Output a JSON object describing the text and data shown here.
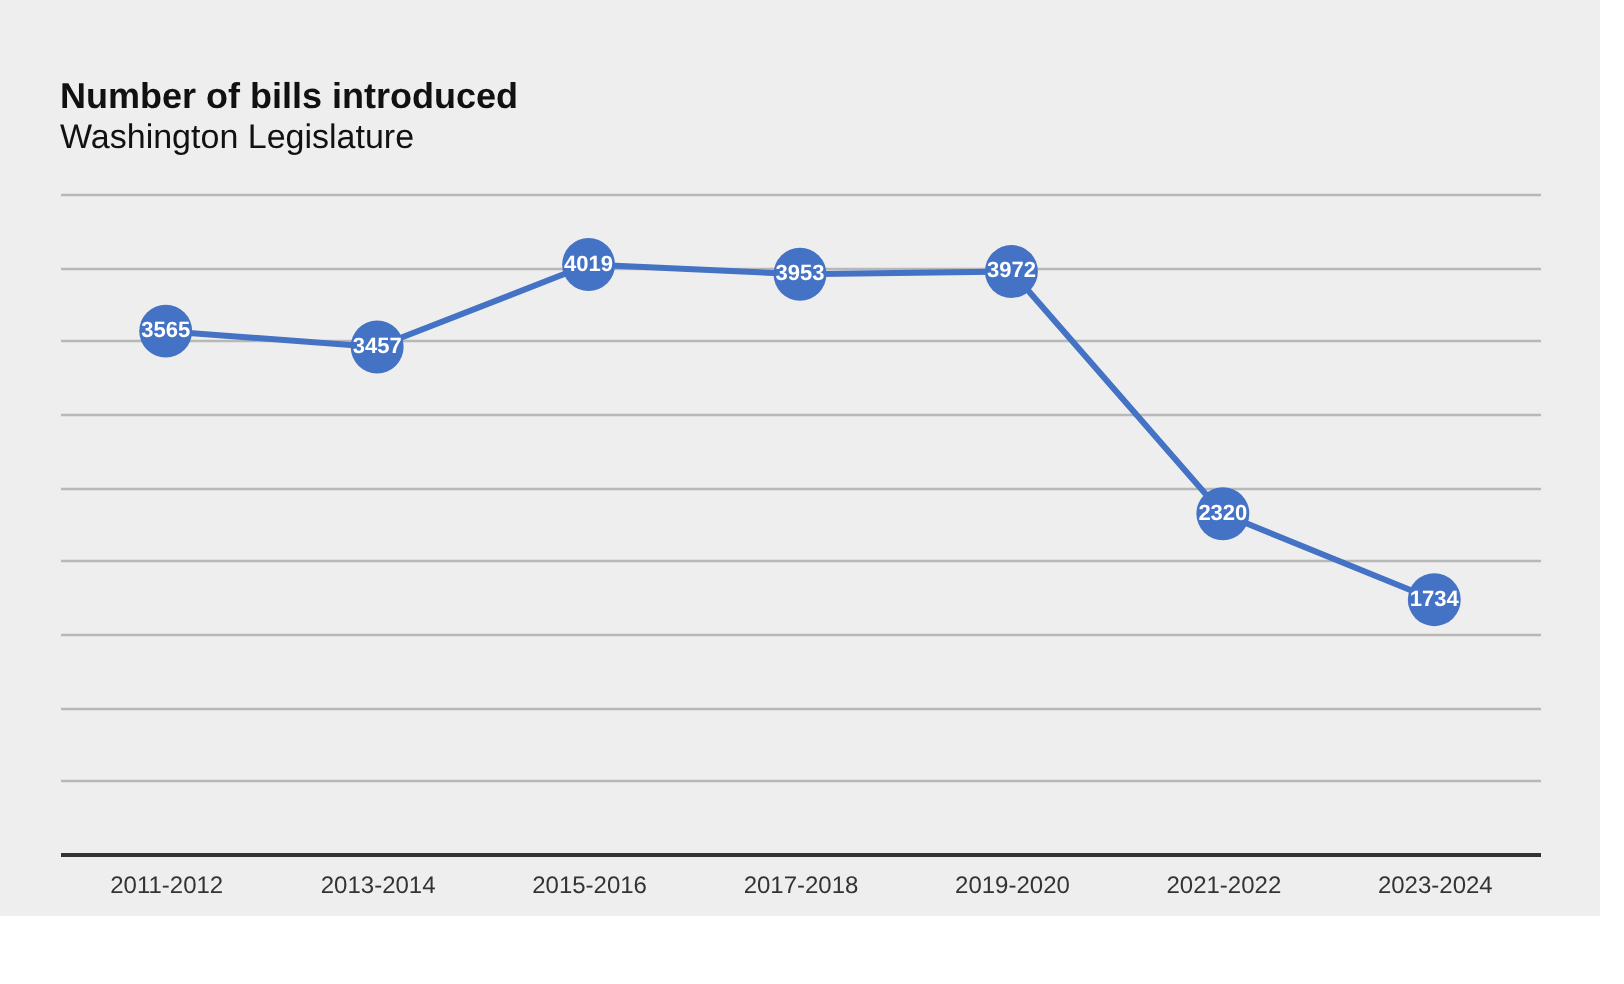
{
  "chart_data": {
    "type": "line",
    "title": "Number of bills introduced",
    "subtitle": "Washington Legislature",
    "categories": [
      "2011-2012",
      "2013-2014",
      "2015-2016",
      "2017-2018",
      "2019-2020",
      "2021-2022",
      "2023-2024"
    ],
    "series": [
      {
        "color": "#4472c4",
        "values": [
          3565,
          3457,
          4019,
          3953,
          3972,
          2320,
          1734
        ]
      }
    ],
    "grid": "y",
    "marker": "circle",
    "line_style": "solid",
    "data_labels": true,
    "tick_labels": "x"
  }
}
